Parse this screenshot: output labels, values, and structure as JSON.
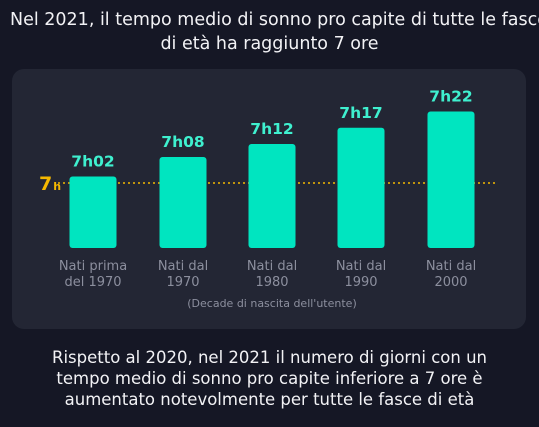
{
  "headline": {
    "line1": "Nel 2021, il tempo medio di sonno pro capite di tutte le fasce",
    "line2": "di età ha raggiunto 7 ore"
  },
  "chart_data": {
    "type": "bar",
    "categories": [
      [
        "Nati prima",
        "del 1970"
      ],
      [
        "Nati dal",
        "1970"
      ],
      [
        "Nati dal",
        "1980"
      ],
      [
        "Nati dal",
        "1990"
      ],
      [
        "Nati dal",
        "2000"
      ]
    ],
    "values_minutes": [
      422,
      428,
      432,
      437,
      442
    ],
    "data_labels": [
      "7h02",
      "7h08",
      "7h12",
      "7h17",
      "7h22"
    ],
    "reference_line": {
      "value_minutes": 420,
      "label_main": "7",
      "label_sub": "h"
    },
    "xlabel": "(Decade di nascita dell'utente)",
    "colors": {
      "bar": "#00e5c0",
      "label": "#3ff0cf",
      "reference": "#f5b800",
      "category": "#8c8f9e"
    }
  },
  "footer": {
    "line1": "Rispetto al 2020, nel 2021 il numero di giorni con un",
    "line2": "tempo medio di sonno pro capite inferiore a 7 ore è",
    "line3": "aumentato notevolmente per tutte le fasce di età"
  }
}
